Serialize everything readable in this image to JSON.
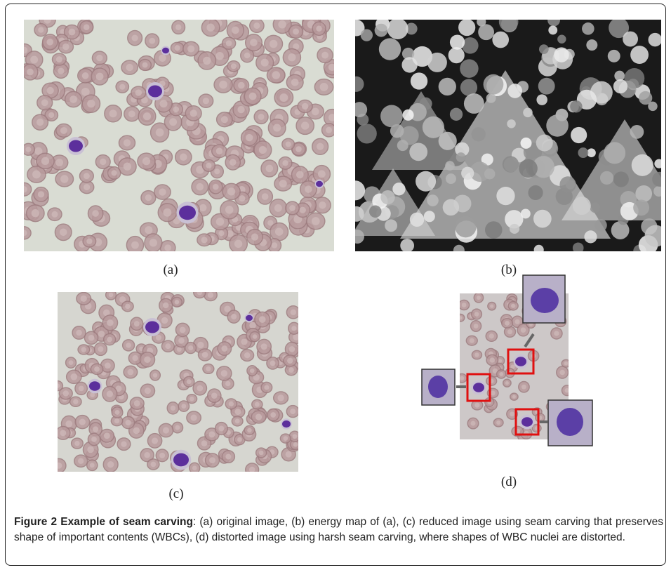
{
  "figure": {
    "panels": [
      {
        "label": "(a)"
      },
      {
        "label": "(b)"
      },
      {
        "label": "(c)"
      },
      {
        "label": "(d)"
      }
    ],
    "caption": {
      "title": "Figure 2 Example of seam carving",
      "text": ": (a) original image, (b) energy map of (a), (c) reduced image using seam carving that preserves shape of important contents (WBCs), (d) distorted image using harsh seam carving, where shapes of WBC nuclei are distorted."
    }
  }
}
